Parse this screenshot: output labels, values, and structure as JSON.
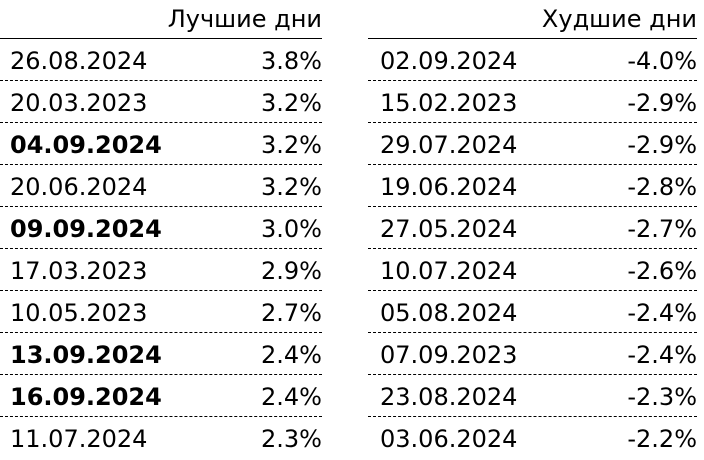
{
  "best": {
    "title": "Лучшие дни",
    "rows": [
      {
        "date": "26.08.2024",
        "value": "3.8%"
      },
      {
        "date": "20.03.2023",
        "value": "3.2%"
      },
      {
        "date": "04.09.2024",
        "value": "3.2%"
      },
      {
        "date": "20.06.2024",
        "value": "3.2%"
      },
      {
        "date": "09.09.2024",
        "value": "3.0%"
      },
      {
        "date": "17.03.2023",
        "value": "2.9%"
      },
      {
        "date": "10.05.2023",
        "value": "2.7%"
      },
      {
        "date": "13.09.2024",
        "value": "2.4%"
      },
      {
        "date": "16.09.2024",
        "value": "2.4%"
      },
      {
        "date": "11.07.2024",
        "value": "2.3%"
      }
    ]
  },
  "worst": {
    "title": "Худшие дни",
    "rows": [
      {
        "date": "02.09.2024",
        "value": "-4.0%"
      },
      {
        "date": "15.02.2023",
        "value": "-2.9%"
      },
      {
        "date": "29.07.2024",
        "value": "-2.9%"
      },
      {
        "date": "19.06.2024",
        "value": "-2.8%"
      },
      {
        "date": "27.05.2024",
        "value": "-2.7%"
      },
      {
        "date": "10.07.2024",
        "value": "-2.6%"
      },
      {
        "date": "05.08.2024",
        "value": "-2.4%"
      },
      {
        "date": "07.09.2023",
        "value": "-2.4%"
      },
      {
        "date": "23.08.2024",
        "value": "-2.3%"
      },
      {
        "date": "03.06.2024",
        "value": "-2.2%"
      }
    ]
  }
}
